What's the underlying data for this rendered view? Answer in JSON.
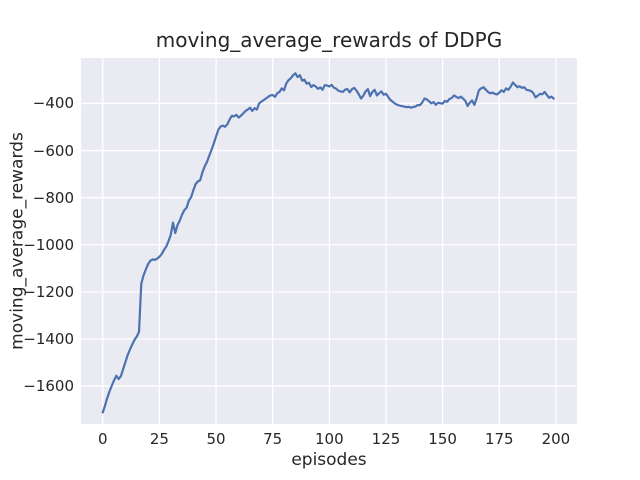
{
  "chart_data": {
    "type": "line",
    "title": "moving_average_rewards of DDPG",
    "xlabel": "episodes",
    "ylabel": "moving_average_rewards",
    "x_ticks": [
      0,
      25,
      50,
      75,
      100,
      125,
      150,
      175,
      200
    ],
    "y_ticks": [
      -400,
      -600,
      -800,
      -1000,
      -1200,
      -1400,
      -1600
    ],
    "xlim": [
      -9.6,
      209.3
    ],
    "ylim": [
      -1761,
      -207
    ],
    "grid": true,
    "legend": null,
    "style": "seaborn-darkgrid",
    "colors": {
      "figure_bg": "#ffffff",
      "axes_bg": "#eaeaf2",
      "grid": "#ffffff",
      "line": "#4c72b0",
      "text": "#262626"
    },
    "series": [
      {
        "name": "moving_average_rewards",
        "x_note": "episodes 0 to 199, one value per episode",
        "values": [
          -1712,
          -1683,
          -1650,
          -1622,
          -1598,
          -1575,
          -1556,
          -1570,
          -1558,
          -1528,
          -1498,
          -1468,
          -1445,
          -1424,
          -1404,
          -1390,
          -1370,
          -1165,
          -1130,
          -1105,
          -1082,
          -1068,
          -1062,
          -1064,
          -1059,
          -1051,
          -1040,
          -1022,
          -1008,
          -985,
          -958,
          -906,
          -950,
          -916,
          -897,
          -872,
          -853,
          -843,
          -812,
          -798,
          -768,
          -742,
          -731,
          -726,
          -692,
          -667,
          -648,
          -622,
          -597,
          -570,
          -540,
          -512,
          -498,
          -494,
          -499,
          -488,
          -468,
          -452,
          -455,
          -448,
          -460,
          -452,
          -442,
          -432,
          -426,
          -418,
          -432,
          -420,
          -426,
          -400,
          -392,
          -386,
          -379,
          -372,
          -366,
          -364,
          -372,
          -357,
          -351,
          -336,
          -344,
          -315,
          -301,
          -293,
          -280,
          -272,
          -288,
          -280,
          -303,
          -299,
          -316,
          -312,
          -330,
          -322,
          -328,
          -338,
          -332,
          -342,
          -322,
          -324,
          -328,
          -321,
          -333,
          -337,
          -346,
          -349,
          -351,
          -341,
          -339,
          -353,
          -339,
          -334,
          -346,
          -361,
          -379,
          -367,
          -349,
          -339,
          -369,
          -351,
          -342,
          -366,
          -356,
          -349,
          -363,
          -359,
          -373,
          -386,
          -393,
          -401,
          -406,
          -409,
          -411,
          -413,
          -416,
          -414,
          -418,
          -415,
          -413,
          -407,
          -407,
          -396,
          -379,
          -383,
          -391,
          -399,
          -394,
          -406,
          -397,
          -399,
          -401,
          -389,
          -393,
          -381,
          -377,
          -366,
          -372,
          -377,
          -371,
          -379,
          -389,
          -411,
          -397,
          -387,
          -406,
          -379,
          -344,
          -336,
          -331,
          -341,
          -351,
          -357,
          -354,
          -359,
          -362,
          -354,
          -344,
          -351,
          -336,
          -342,
          -329,
          -311,
          -321,
          -331,
          -327,
          -334,
          -331,
          -342,
          -344,
          -347,
          -356,
          -374,
          -367,
          -359,
          -361,
          -351,
          -364,
          -376,
          -371,
          -379
        ]
      }
    ]
  }
}
